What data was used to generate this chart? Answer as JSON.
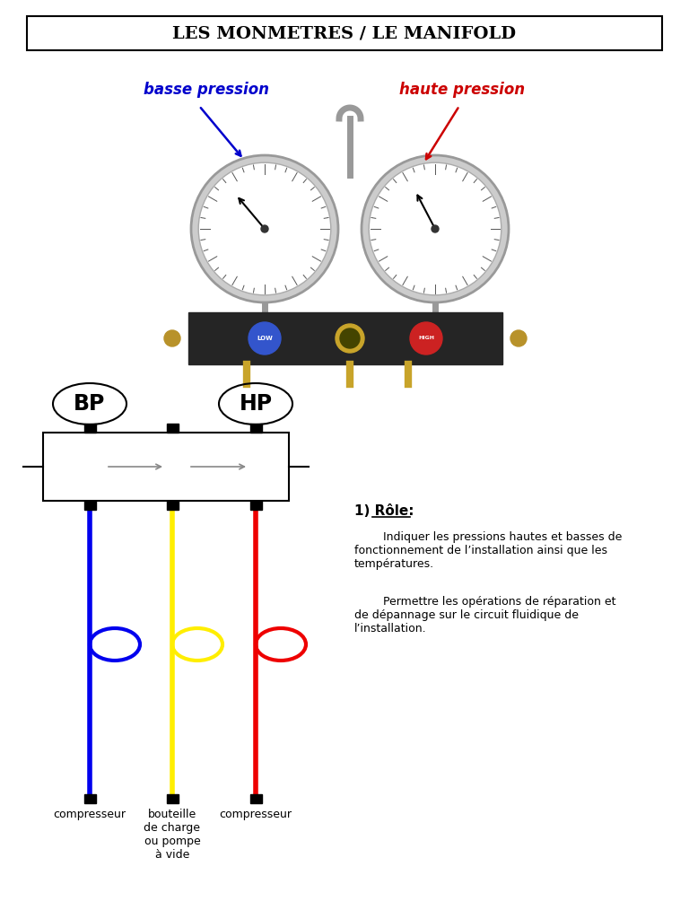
{
  "title": "LES MONMETRES / LE MANIFOLD",
  "title_fontsize": 14,
  "bg_color": "#ffffff",
  "label_bp": "basse pression",
  "label_hp": "haute pression",
  "label_bp_color": "#0000cc",
  "label_hp_color": "#cc0000",
  "role_title": "1) Rôle:",
  "role_text1": "        Indiquer les pressions hautes et basses de\nfonctionnement de l’installation ainsi que les\ntempératures.",
  "role_text2": "        Permettre les opérations de réparation et\nde dépannage sur le circuit fluidique de\nl’installation.",
  "label_compresseur_left": "compresseur",
  "label_bouteille": "bouteille\nde charge\nou pompe\nà vide",
  "label_compresseur_right": "compresseur",
  "color_blue": "#0000ee",
  "color_yellow": "#ffee00",
  "color_red": "#ee0000",
  "color_gray": "#888888",
  "color_black": "#000000",
  "color_light_gray": "#cccccc"
}
